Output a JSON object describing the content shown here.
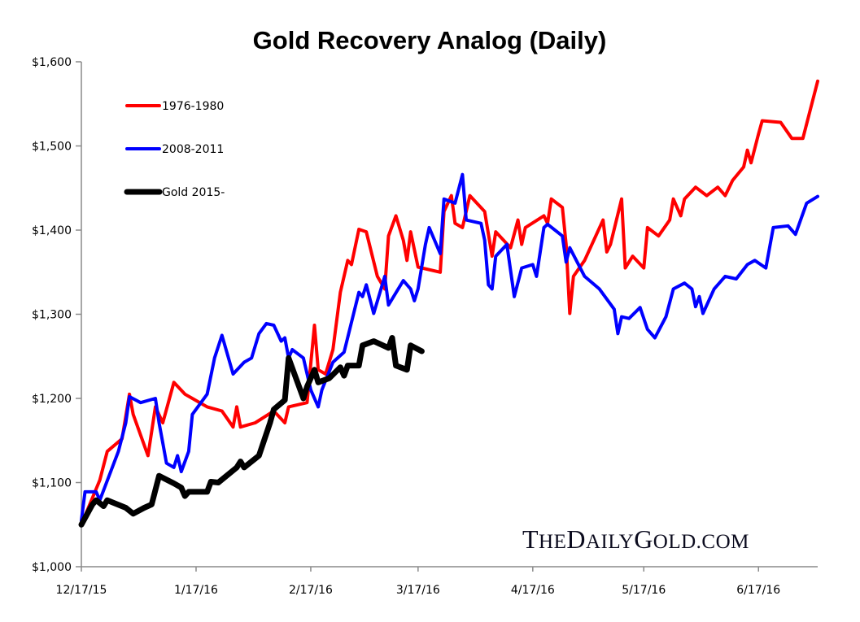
{
  "chart_data": {
    "type": "line",
    "title": "Gold Recovery Analog (Daily)",
    "xlabel": "",
    "ylabel": "",
    "xlim": [
      "12/17/15",
      "7/3/16"
    ],
    "ylim": [
      1000,
      1600
    ],
    "x_ticks": [
      "12/17/15",
      "1/17/16",
      "2/17/16",
      "3/17/16",
      "4/17/16",
      "5/17/16",
      "6/17/16"
    ],
    "y_ticks": [
      1000,
      1100,
      1200,
      1300,
      1400,
      1500,
      1600
    ],
    "y_tick_labels": [
      "$1,000",
      "$1,100",
      "$1,200",
      "$1,300",
      "$1,400",
      "$1,500",
      "$1,600"
    ],
    "grid": false,
    "legend_placement": "top-left",
    "watermark": "TheDailyGold.com",
    "series": [
      {
        "name": "1976-1980",
        "color": "#ff0000",
        "points": [
          [
            "12/17/15",
            1050
          ],
          [
            "12/22/15",
            1103
          ],
          [
            "12/24/15",
            1137
          ],
          [
            "12/28/15",
            1152
          ],
          [
            "12/30/15",
            1205
          ],
          [
            "12/31/15",
            1181
          ],
          [
            "1/4/16",
            1132
          ],
          [
            "1/6/16",
            1190
          ],
          [
            "1/8/16",
            1171
          ],
          [
            "1/11/16",
            1219
          ],
          [
            "1/14/16",
            1205
          ],
          [
            "1/16/16",
            1200
          ],
          [
            "1/20/16",
            1190
          ],
          [
            "1/24/16",
            1185
          ],
          [
            "1/27/16",
            1166
          ],
          [
            "1/28/16",
            1190
          ],
          [
            "1/29/16",
            1166
          ],
          [
            "2/2/16",
            1171
          ],
          [
            "2/7/16",
            1185
          ],
          [
            "2/10/16",
            1171
          ],
          [
            "2/11/16",
            1190
          ],
          [
            "2/16/16",
            1195
          ],
          [
            "2/18/16",
            1287
          ],
          [
            "2/19/16",
            1234
          ],
          [
            "2/21/16",
            1229
          ],
          [
            "2/23/16",
            1258
          ],
          [
            "2/25/16",
            1326
          ],
          [
            "2/27/16",
            1364
          ],
          [
            "2/28/16",
            1359
          ],
          [
            "3/1/16",
            1401
          ],
          [
            "3/3/16",
            1398
          ],
          [
            "3/6/16",
            1345
          ],
          [
            "3/8/16",
            1330
          ],
          [
            "3/9/16",
            1393
          ],
          [
            "3/11/16",
            1417
          ],
          [
            "3/13/16",
            1388
          ],
          [
            "3/14/16",
            1364
          ],
          [
            "3/15/16",
            1398
          ],
          [
            "3/17/16",
            1356
          ],
          [
            "3/23/16",
            1350
          ],
          [
            "3/24/16",
            1422
          ],
          [
            "3/26/16",
            1441
          ],
          [
            "3/27/16",
            1408
          ],
          [
            "3/29/16",
            1403
          ],
          [
            "3/31/16",
            1441
          ],
          [
            "4/4/16",
            1422
          ],
          [
            "4/6/16",
            1369
          ],
          [
            "4/7/16",
            1398
          ],
          [
            "4/11/16",
            1379
          ],
          [
            "4/13/16",
            1412
          ],
          [
            "4/14/16",
            1383
          ],
          [
            "4/15/16",
            1403
          ],
          [
            "4/20/16",
            1417
          ],
          [
            "4/21/16",
            1408
          ],
          [
            "4/22/16",
            1437
          ],
          [
            "4/25/16",
            1427
          ],
          [
            "4/26/16",
            1383
          ],
          [
            "4/27/16",
            1301
          ],
          [
            "4/28/16",
            1345
          ],
          [
            "5/1/16",
            1364
          ],
          [
            "5/6/16",
            1412
          ],
          [
            "5/7/16",
            1374
          ],
          [
            "5/8/16",
            1383
          ],
          [
            "5/11/16",
            1437
          ],
          [
            "5/12/16",
            1355
          ],
          [
            "5/14/16",
            1369
          ],
          [
            "5/17/16",
            1355
          ],
          [
            "5/18/16",
            1403
          ],
          [
            "5/21/16",
            1393
          ],
          [
            "5/24/16",
            1412
          ],
          [
            "5/25/16",
            1437
          ],
          [
            "5/27/16",
            1417
          ],
          [
            "5/28/16",
            1437
          ],
          [
            "5/31/16",
            1451
          ],
          [
            "6/3/16",
            1441
          ],
          [
            "6/6/16",
            1451
          ],
          [
            "6/8/16",
            1441
          ],
          [
            "6/10/16",
            1459
          ],
          [
            "6/13/16",
            1475
          ],
          [
            "6/14/16",
            1495
          ],
          [
            "6/15/16",
            1480
          ],
          [
            "6/17/16",
            1514
          ],
          [
            "6/18/16",
            1530
          ],
          [
            "6/23/16",
            1528
          ],
          [
            "6/26/16",
            1509
          ],
          [
            "6/29/16",
            1509
          ],
          [
            "7/1/16",
            1543
          ],
          [
            "7/3/16",
            1577
          ]
        ]
      },
      {
        "name": "2008-2011",
        "color": "#0000ff",
        "points": [
          [
            "12/17/15",
            1055
          ],
          [
            "12/18/15",
            1089
          ],
          [
            "12/21/15",
            1089
          ],
          [
            "12/22/15",
            1079
          ],
          [
            "12/27/15",
            1137
          ],
          [
            "12/29/15",
            1171
          ],
          [
            "12/30/15",
            1202
          ],
          [
            "1/2/16",
            1195
          ],
          [
            "1/6/16",
            1200
          ],
          [
            "1/7/16",
            1171
          ],
          [
            "1/8/16",
            1147
          ],
          [
            "1/9/16",
            1123
          ],
          [
            "1/11/16",
            1118
          ],
          [
            "1/12/16",
            1132
          ],
          [
            "1/13/16",
            1113
          ],
          [
            "1/15/16",
            1137
          ],
          [
            "1/16/16",
            1181
          ],
          [
            "1/20/16",
            1205
          ],
          [
            "1/22/16",
            1248
          ],
          [
            "1/24/16",
            1275
          ],
          [
            "1/27/16",
            1229
          ],
          [
            "1/30/16",
            1243
          ],
          [
            "2/1/16",
            1248
          ],
          [
            "2/3/16",
            1277
          ],
          [
            "2/5/16",
            1289
          ],
          [
            "2/7/16",
            1287
          ],
          [
            "2/9/16",
            1268
          ],
          [
            "2/10/16",
            1272
          ],
          [
            "2/11/16",
            1248
          ],
          [
            "2/12/16",
            1258
          ],
          [
            "2/15/16",
            1248
          ],
          [
            "2/17/16",
            1210
          ],
          [
            "2/19/16",
            1190
          ],
          [
            "2/20/16",
            1210
          ],
          [
            "2/23/16",
            1243
          ],
          [
            "2/26/16",
            1255
          ],
          [
            "3/1/16",
            1326
          ],
          [
            "3/2/16",
            1321
          ],
          [
            "3/3/16",
            1335
          ],
          [
            "3/5/16",
            1301
          ],
          [
            "3/8/16",
            1345
          ],
          [
            "3/9/16",
            1311
          ],
          [
            "3/13/16",
            1340
          ],
          [
            "3/15/16",
            1330
          ],
          [
            "3/16/16",
            1316
          ],
          [
            "3/17/16",
            1330
          ],
          [
            "3/19/16",
            1383
          ],
          [
            "3/20/16",
            1403
          ],
          [
            "3/23/16",
            1372
          ],
          [
            "3/24/16",
            1437
          ],
          [
            "3/27/16",
            1432
          ],
          [
            "3/29/16",
            1466
          ],
          [
            "3/30/16",
            1412
          ],
          [
            "4/3/16",
            1408
          ],
          [
            "4/4/16",
            1388
          ],
          [
            "4/5/16",
            1335
          ],
          [
            "4/6/16",
            1330
          ],
          [
            "4/7/16",
            1369
          ],
          [
            "4/10/16",
            1383
          ],
          [
            "4/12/16",
            1321
          ],
          [
            "4/14/16",
            1355
          ],
          [
            "4/17/16",
            1359
          ],
          [
            "4/18/16",
            1345
          ],
          [
            "4/20/16",
            1403
          ],
          [
            "4/21/16",
            1407
          ],
          [
            "4/25/16",
            1393
          ],
          [
            "4/26/16",
            1362
          ],
          [
            "4/27/16",
            1379
          ],
          [
            "5/1/16",
            1345
          ],
          [
            "5/5/16",
            1330
          ],
          [
            "5/9/16",
            1306
          ],
          [
            "5/10/16",
            1277
          ],
          [
            "5/11/16",
            1297
          ],
          [
            "5/13/16",
            1295
          ],
          [
            "5/16/16",
            1308
          ],
          [
            "5/18/16",
            1282
          ],
          [
            "5/20/16",
            1272
          ],
          [
            "5/23/16",
            1297
          ],
          [
            "5/25/16",
            1330
          ],
          [
            "5/28/16",
            1337
          ],
          [
            "5/30/16",
            1330
          ],
          [
            "5/31/16",
            1309
          ],
          [
            "6/1/16",
            1321
          ],
          [
            "6/2/16",
            1301
          ],
          [
            "6/5/16",
            1330
          ],
          [
            "6/8/16",
            1345
          ],
          [
            "6/11/16",
            1342
          ],
          [
            "6/14/16",
            1359
          ],
          [
            "6/16/16",
            1364
          ],
          [
            "6/19/16",
            1355
          ],
          [
            "6/21/16",
            1403
          ],
          [
            "6/25/16",
            1405
          ],
          [
            "6/27/16",
            1395
          ],
          [
            "6/30/16",
            1432
          ],
          [
            "7/3/16",
            1440
          ]
        ]
      },
      {
        "name": "Gold 2015-",
        "color": "#000000",
        "points": [
          [
            "12/17/15",
            1050
          ],
          [
            "12/20/15",
            1074
          ],
          [
            "12/21/15",
            1079
          ],
          [
            "12/23/15",
            1072
          ],
          [
            "12/24/15",
            1079
          ],
          [
            "12/29/15",
            1070
          ],
          [
            "12/31/15",
            1063
          ],
          [
            "1/3/16",
            1070
          ],
          [
            "1/5/16",
            1074
          ],
          [
            "1/7/16",
            1108
          ],
          [
            "1/11/16",
            1099
          ],
          [
            "1/13/16",
            1094
          ],
          [
            "1/14/16",
            1084
          ],
          [
            "1/15/16",
            1089
          ],
          [
            "1/20/16",
            1089
          ],
          [
            "1/21/16",
            1101
          ],
          [
            "1/23/16",
            1100
          ],
          [
            "1/28/16",
            1118
          ],
          [
            "1/29/16",
            1125
          ],
          [
            "1/30/16",
            1118
          ],
          [
            "2/3/16",
            1132
          ],
          [
            "2/6/16",
            1171
          ],
          [
            "2/7/16",
            1187
          ],
          [
            "2/10/16",
            1198
          ],
          [
            "2/11/16",
            1248
          ],
          [
            "2/13/16",
            1224
          ],
          [
            "2/15/16",
            1200
          ],
          [
            "2/16/16",
            1214
          ],
          [
            "2/18/16",
            1234
          ],
          [
            "2/19/16",
            1219
          ],
          [
            "2/22/16",
            1224
          ],
          [
            "2/25/16",
            1237
          ],
          [
            "2/26/16",
            1227
          ],
          [
            "2/27/16",
            1239
          ],
          [
            "3/1/16",
            1239
          ],
          [
            "3/2/16",
            1263
          ],
          [
            "3/5/16",
            1268
          ],
          [
            "3/9/16",
            1260
          ],
          [
            "3/10/16",
            1272
          ],
          [
            "3/11/16",
            1239
          ],
          [
            "3/14/16",
            1234
          ],
          [
            "3/15/16",
            1263
          ],
          [
            "3/18/16",
            1256
          ]
        ]
      }
    ]
  }
}
